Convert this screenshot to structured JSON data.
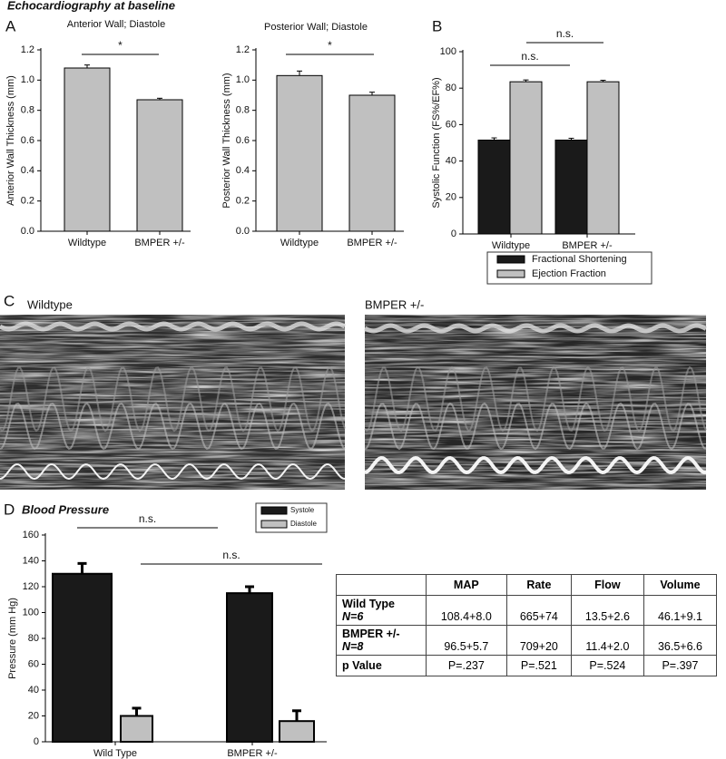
{
  "heading": "Echocardiography at baseline",
  "panel_labels": [
    "A",
    "B",
    "C",
    "D"
  ],
  "mmode_labels": [
    "Wildtype",
    "BMPER +/-"
  ],
  "chart_data": [
    {
      "type": "bar",
      "title": "Anterior Wall; Diastole",
      "y_label": "Anterior Wall Thickness (mm)",
      "categories": [
        "Wildtype",
        "BMPER +/-"
      ],
      "values": [
        1.08,
        0.87
      ],
      "errors": [
        0.02,
        0.01
      ],
      "color": "#c0c0c0",
      "ylim": [
        0,
        1.2
      ],
      "yticks": [
        {
          "value": 0,
          "label": "0.0"
        },
        0.2,
        0.4,
        0.6,
        0.8,
        {
          "value": 1,
          "label": "1.0"
        },
        1.2
      ],
      "annotations": [
        "*"
      ]
    },
    {
      "type": "bar",
      "title": "Posterior Wall; Diastole",
      "y_label": "Posterior Wall Thickness (mm)",
      "categories": [
        "Wildtype",
        "BMPER +/-"
      ],
      "values": [
        1.03,
        0.9
      ],
      "errors": [
        0.03,
        0.02
      ],
      "color": "#c0c0c0",
      "ylim": [
        0,
        1.2
      ],
      "yticks": [
        {
          "value": 0,
          "label": "0.0"
        },
        0.2,
        0.4,
        0.6,
        0.8,
        {
          "value": 1,
          "label": "1.0"
        },
        1.2
      ],
      "annotations": [
        "*"
      ]
    },
    {
      "type": "bar",
      "y_label": "Systolic Function (FS%/EF%)",
      "categories": [
        "Wildtype",
        "BMPER +/-"
      ],
      "series": [
        {
          "name": "Fractional Shortening",
          "color": "#1a1a1a",
          "values": [
            51.5,
            51.5
          ],
          "errors": [
            1.2,
            1.0
          ]
        },
        {
          "name": "Ejection Fraction",
          "color": "#c0c0c0",
          "values": [
            83.5,
            83.5
          ],
          "errors": [
            1.0,
            0.8
          ]
        }
      ],
      "ylim": [
        0,
        100
      ],
      "yticks": [
        0,
        20,
        40,
        60,
        80,
        100
      ],
      "legend": "below",
      "annotations": [
        "n.s.",
        "n.s."
      ]
    },
    {
      "type": "bar",
      "title": "Blood Pressure",
      "y_label": "Pressure (mm Hg)",
      "categories": [
        "Wild Type",
        "BMPER +/-"
      ],
      "series": [
        {
          "name": "Systole",
          "color": "#1a1a1a",
          "values": [
            130,
            115
          ],
          "errors": [
            8,
            5
          ]
        },
        {
          "name": "Diastole",
          "color": "#c0c0c0",
          "values": [
            20,
            16
          ],
          "errors": [
            6,
            8
          ]
        }
      ],
      "ylim": [
        0,
        160
      ],
      "yticks": [
        0,
        20,
        40,
        60,
        80,
        100,
        120,
        140,
        160
      ],
      "legend": "upper right",
      "annotations": [
        "n.s.",
        "n.s."
      ]
    }
  ],
  "table": {
    "columns": [
      "MAP",
      "Rate",
      "Flow",
      "Volume"
    ],
    "rows": [
      {
        "label": "Wild Type",
        "sublabel": "N=6",
        "cells": [
          "108.4+8.0",
          "665+74",
          "13.5+2.6",
          "46.1+9.1"
        ]
      },
      {
        "label": "BMPER +/-",
        "sublabel": "N=8",
        "cells": [
          "96.5+5.7",
          "709+20",
          "11.4+2.0",
          "36.5+6.6"
        ]
      },
      {
        "label": "p Value",
        "cells": [
          "P=.237",
          "P=.521",
          "P=.524",
          "P=.397"
        ]
      }
    ]
  }
}
